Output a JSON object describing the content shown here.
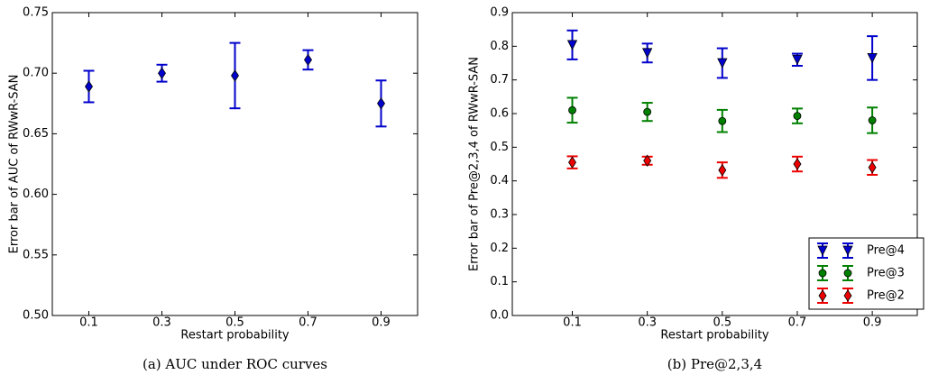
{
  "chart_data": [
    {
      "type": "errorbar",
      "caption": "(a) AUC under ROC curves",
      "x_label": "Restart probability",
      "y_label": "Error bar of AUC of RWwR-SAN",
      "x": [
        0.1,
        0.3,
        0.5,
        0.7,
        0.9
      ],
      "values": [
        0.689,
        0.7,
        0.698,
        0.711,
        0.675
      ],
      "errors": [
        0.013,
        0.007,
        0.027,
        0.008,
        0.019
      ],
      "color": "#0000cc",
      "marker": "diamond",
      "xlim": [
        0,
        1
      ],
      "xticks": [
        0.1,
        0.3,
        0.5,
        0.7,
        0.9
      ],
      "ylim": [
        0.5,
        0.75
      ],
      "yticks": [
        {
          "value": 0.5,
          "label": "0.50"
        },
        {
          "value": 0.55,
          "label": "0.55"
        },
        {
          "value": 0.6,
          "label": "0.60"
        },
        {
          "value": 0.65,
          "label": "0.65"
        },
        {
          "value": 0.7,
          "label": "0.70"
        },
        {
          "value": 0.75,
          "label": "0.75"
        }
      ]
    },
    {
      "type": "errorbar",
      "caption": "(b) Pre@2,3,4",
      "x_label": "Restart probability",
      "y_label": "Error bar of Pre@2,3,4 of RWwR-SAN",
      "x": [
        0.1,
        0.3,
        0.5,
        0.7,
        0.9
      ],
      "series": [
        {
          "name": "Pre@4",
          "color": "#0000cc",
          "marker": "triangle-down",
          "values": [
            0.804,
            0.78,
            0.75,
            0.76,
            0.765
          ],
          "errors": [
            0.043,
            0.028,
            0.044,
            0.018,
            0.065
          ]
        },
        {
          "name": "Pre@3",
          "color": "#008000",
          "marker": "circle",
          "values": [
            0.61,
            0.605,
            0.578,
            0.593,
            0.58
          ],
          "errors": [
            0.037,
            0.027,
            0.033,
            0.022,
            0.038
          ]
        },
        {
          "name": "Pre@2",
          "color": "#ee0000",
          "marker": "diamond",
          "values": [
            0.455,
            0.46,
            0.432,
            0.45,
            0.44
          ],
          "errors": [
            0.018,
            0.012,
            0.023,
            0.022,
            0.022
          ]
        }
      ],
      "legend": "lower right",
      "xlim": [
        -0.06,
        1.02
      ],
      "xticks": [
        0.1,
        0.3,
        0.5,
        0.7,
        0.9
      ],
      "ylim": [
        0,
        0.9
      ],
      "yticks": [
        {
          "value": 0,
          "label": "0.0"
        },
        0.1,
        0.2,
        0.3,
        0.4,
        0.5,
        0.6,
        0.7,
        0.8,
        0.9
      ]
    }
  ]
}
